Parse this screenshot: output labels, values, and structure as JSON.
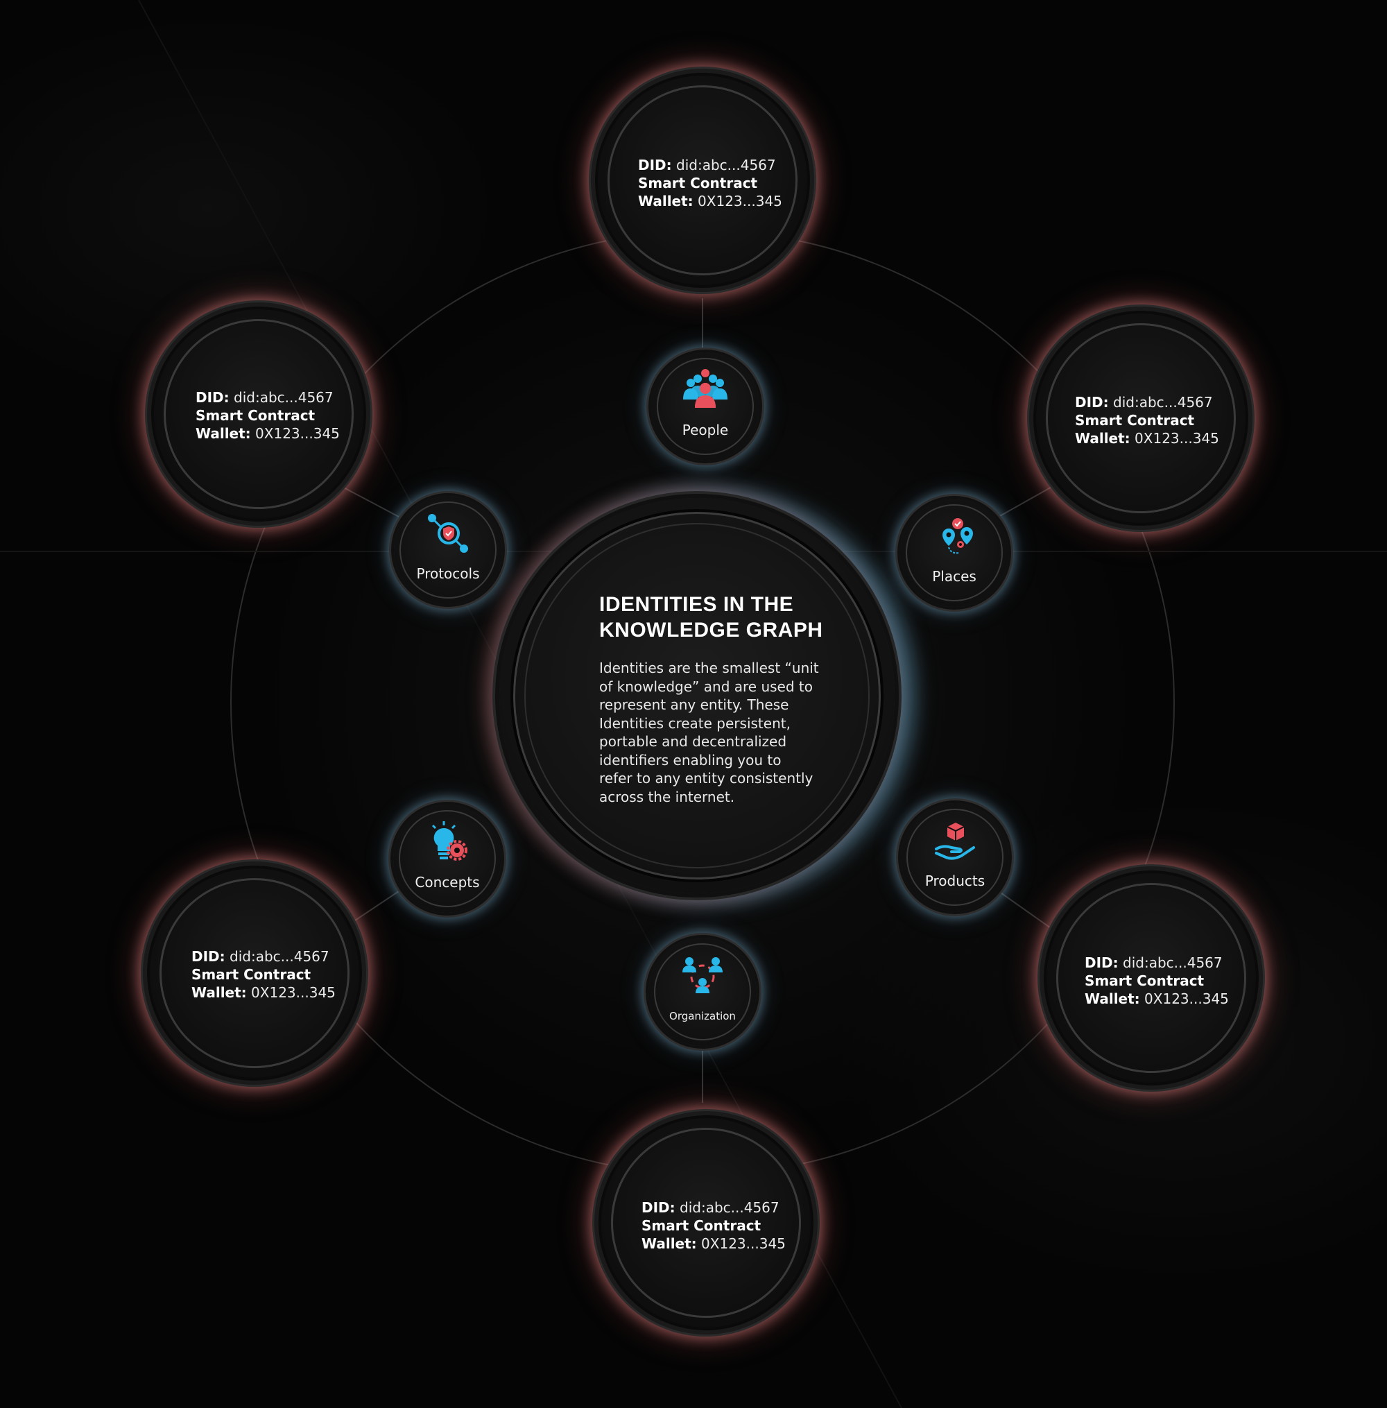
{
  "center": {
    "title_line1": "IDENTITIES IN THE",
    "title_line2": "KNOWLEDGE GRAPH",
    "body_lines": [
      "Identities are the smallest “unit",
      "of knowledge” and are used to",
      "represent any entity. These",
      "Identities create persistent,",
      "portable and decentralized",
      "identifiers enabling you to",
      "refer to any entity consistently",
      "across the internet."
    ]
  },
  "categories": {
    "people": {
      "label": "People",
      "icon": "people-group-icon"
    },
    "places": {
      "label": "Places",
      "icon": "map-pins-icon"
    },
    "products": {
      "label": "Products",
      "icon": "hand-with-box-icon"
    },
    "organization": {
      "label": "Organization",
      "icon": "organization-people-icon"
    },
    "concepts": {
      "label": "Concepts",
      "icon": "lightbulb-gear-icon"
    },
    "protocols": {
      "label": "Protocols",
      "icon": "network-shield-icon"
    }
  },
  "identity": {
    "did_label": "DID:",
    "did_value": "did:abc...4567",
    "line2": "Smart Contract",
    "wallet_label": "Wallet:",
    "wallet_value": "0X123...345"
  },
  "colors": {
    "background": "#050505",
    "pink_glow": "#e08282",
    "blue_glow": "#78aac8",
    "icon_blue": "#29b6e8",
    "icon_red": "#e8505b"
  }
}
